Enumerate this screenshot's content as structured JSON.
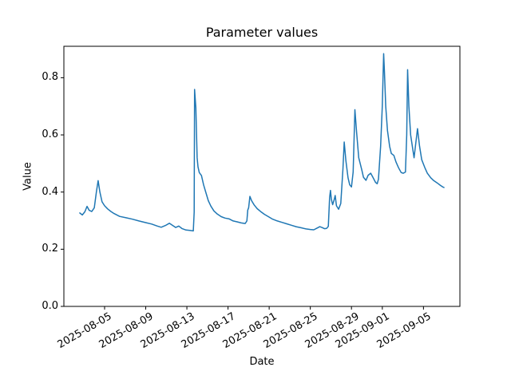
{
  "chart_data": {
    "type": "line",
    "title": "Parameter values",
    "xlabel": "Date",
    "ylabel": "Value",
    "grid": false,
    "legend": false,
    "line_color": "#1f77b4",
    "background_color": "#ffffff",
    "y_ticks": [
      0.0,
      0.2,
      0.4,
      0.6,
      0.8
    ],
    "x_ticks": [
      "2025-08-05",
      "2025-08-09",
      "2025-08-13",
      "2025-08-17",
      "2025-08-21",
      "2025-08-25",
      "2025-08-29",
      "2025-09-01",
      "2025-09-05"
    ],
    "x_lim": [
      "2025-08-01T01:00",
      "2025-09-08T13:00"
    ],
    "y_lim": [
      0.0,
      0.91
    ],
    "series": [
      {
        "name": "parameter-values",
        "color": "#1f77b4",
        "points": [
          [
            "2025-08-02T14:00",
            0.327
          ],
          [
            "2025-08-02T20:00",
            0.32
          ],
          [
            "2025-08-03T02:00",
            0.331
          ],
          [
            "2025-08-03T07:00",
            0.35
          ],
          [
            "2025-08-03T12:00",
            0.336
          ],
          [
            "2025-08-03T18:00",
            0.332
          ],
          [
            "2025-08-04T00:00",
            0.345
          ],
          [
            "2025-08-04T05:00",
            0.402
          ],
          [
            "2025-08-04T09:00",
            0.44
          ],
          [
            "2025-08-04T13:00",
            0.4
          ],
          [
            "2025-08-04T18:00",
            0.366
          ],
          [
            "2025-08-05T00:00",
            0.352
          ],
          [
            "2025-08-05T07:00",
            0.341
          ],
          [
            "2025-08-05T15:00",
            0.332
          ],
          [
            "2025-08-05T22:00",
            0.325
          ],
          [
            "2025-08-06T11:00",
            0.315
          ],
          [
            "2025-08-07T02:00",
            0.31
          ],
          [
            "2025-08-07T17:00",
            0.305
          ],
          [
            "2025-08-08T08:00",
            0.299
          ],
          [
            "2025-08-09T00:00",
            0.293
          ],
          [
            "2025-08-09T14:00",
            0.288
          ],
          [
            "2025-08-10T03:00",
            0.281
          ],
          [
            "2025-08-10T12:00",
            0.277
          ],
          [
            "2025-08-10T22:00",
            0.283
          ],
          [
            "2025-08-11T07:00",
            0.291
          ],
          [
            "2025-08-11T14:00",
            0.284
          ],
          [
            "2025-08-11T22:00",
            0.276
          ],
          [
            "2025-08-12T05:00",
            0.281
          ],
          [
            "2025-08-12T13:00",
            0.272
          ],
          [
            "2025-08-12T22:00",
            0.267
          ],
          [
            "2025-08-13T07:00",
            0.266
          ],
          [
            "2025-08-13T15:00",
            0.264
          ],
          [
            "2025-08-13T17:00",
            0.33
          ],
          [
            "2025-08-13T18:00",
            0.759
          ],
          [
            "2025-08-13T20:00",
            0.715
          ],
          [
            "2025-08-13T21:00",
            0.695
          ],
          [
            "2025-08-14T00:00",
            0.52
          ],
          [
            "2025-08-14T02:00",
            0.488
          ],
          [
            "2025-08-14T05:00",
            0.468
          ],
          [
            "2025-08-14T10:00",
            0.458
          ],
          [
            "2025-08-14T15:00",
            0.425
          ],
          [
            "2025-08-14T21:00",
            0.395
          ],
          [
            "2025-08-15T02:00",
            0.37
          ],
          [
            "2025-08-15T08:00",
            0.351
          ],
          [
            "2025-08-15T15:00",
            0.334
          ],
          [
            "2025-08-15T23:00",
            0.323
          ],
          [
            "2025-08-16T08:00",
            0.314
          ],
          [
            "2025-08-16T17:00",
            0.309
          ],
          [
            "2025-08-17T03:00",
            0.306
          ],
          [
            "2025-08-17T12:00",
            0.299
          ],
          [
            "2025-08-17T21:00",
            0.296
          ],
          [
            "2025-08-18T07:00",
            0.292
          ],
          [
            "2025-08-18T16:00",
            0.29
          ],
          [
            "2025-08-18T20:00",
            0.299
          ],
          [
            "2025-08-18T22:00",
            0.337
          ],
          [
            "2025-08-19T00:00",
            0.345
          ],
          [
            "2025-08-19T03:00",
            0.385
          ],
          [
            "2025-08-19T07:00",
            0.37
          ],
          [
            "2025-08-19T13:00",
            0.355
          ],
          [
            "2025-08-19T20:00",
            0.342
          ],
          [
            "2025-08-20T04:00",
            0.332
          ],
          [
            "2025-08-20T13:00",
            0.322
          ],
          [
            "2025-08-20T22:00",
            0.314
          ],
          [
            "2025-08-21T07:00",
            0.306
          ],
          [
            "2025-08-21T19:00",
            0.299
          ],
          [
            "2025-08-22T06:00",
            0.294
          ],
          [
            "2025-08-22T17:00",
            0.289
          ],
          [
            "2025-08-23T04:00",
            0.284
          ],
          [
            "2025-08-23T15:00",
            0.279
          ],
          [
            "2025-08-24T03:00",
            0.275
          ],
          [
            "2025-08-24T14:00",
            0.271
          ],
          [
            "2025-08-25T00:00",
            0.269
          ],
          [
            "2025-08-25T08:00",
            0.268
          ],
          [
            "2025-08-25T16:00",
            0.274
          ],
          [
            "2025-08-25T22:00",
            0.279
          ],
          [
            "2025-08-26T03:00",
            0.276
          ],
          [
            "2025-08-26T09:00",
            0.272
          ],
          [
            "2025-08-26T14:00",
            0.273
          ],
          [
            "2025-08-26T18:00",
            0.28
          ],
          [
            "2025-08-26T21:00",
            0.38
          ],
          [
            "2025-08-26T23:00",
            0.406
          ],
          [
            "2025-08-27T01:00",
            0.375
          ],
          [
            "2025-08-27T04:00",
            0.356
          ],
          [
            "2025-08-27T07:00",
            0.37
          ],
          [
            "2025-08-27T10:00",
            0.388
          ],
          [
            "2025-08-27T13:00",
            0.352
          ],
          [
            "2025-08-27T18:00",
            0.34
          ],
          [
            "2025-08-27T23:00",
            0.36
          ],
          [
            "2025-08-28T04:00",
            0.48
          ],
          [
            "2025-08-28T07:00",
            0.575
          ],
          [
            "2025-08-28T11:00",
            0.51
          ],
          [
            "2025-08-28T16:00",
            0.45
          ],
          [
            "2025-08-28T20:00",
            0.425
          ],
          [
            "2025-08-29T00:00",
            0.418
          ],
          [
            "2025-08-29T04:00",
            0.47
          ],
          [
            "2025-08-29T08:00",
            0.688
          ],
          [
            "2025-08-29T12:00",
            0.61
          ],
          [
            "2025-08-29T17:00",
            0.52
          ],
          [
            "2025-08-30T00:00",
            0.478
          ],
          [
            "2025-08-30T04:00",
            0.452
          ],
          [
            "2025-08-30T10:00",
            0.441
          ],
          [
            "2025-08-30T15:00",
            0.459
          ],
          [
            "2025-08-30T21:00",
            0.466
          ],
          [
            "2025-08-31T02:00",
            0.452
          ],
          [
            "2025-08-31T08:00",
            0.434
          ],
          [
            "2025-08-31T12:00",
            0.429
          ],
          [
            "2025-08-31T15:00",
            0.445
          ],
          [
            "2025-08-31T20:00",
            0.56
          ],
          [
            "2025-09-01T00:00",
            0.7
          ],
          [
            "2025-09-01T03:00",
            0.884
          ],
          [
            "2025-09-01T05:00",
            0.82
          ],
          [
            "2025-09-01T08:00",
            0.7
          ],
          [
            "2025-09-01T12:00",
            0.615
          ],
          [
            "2025-09-01T17:00",
            0.56
          ],
          [
            "2025-09-01T21:00",
            0.535
          ],
          [
            "2025-09-02T03:00",
            0.528
          ],
          [
            "2025-09-02T08:00",
            0.505
          ],
          [
            "2025-09-02T14:00",
            0.485
          ],
          [
            "2025-09-02T20:00",
            0.468
          ],
          [
            "2025-09-03T01:00",
            0.466
          ],
          [
            "2025-09-03T06:00",
            0.47
          ],
          [
            "2025-09-03T09:00",
            0.6
          ],
          [
            "2025-09-03T11:00",
            0.828
          ],
          [
            "2025-09-03T14:00",
            0.7
          ],
          [
            "2025-09-03T18:00",
            0.6
          ],
          [
            "2025-09-04T00:00",
            0.54
          ],
          [
            "2025-09-04T02:00",
            0.52
          ],
          [
            "2025-09-04T06:00",
            0.57
          ],
          [
            "2025-09-04T10:00",
            0.622
          ],
          [
            "2025-09-04T15:00",
            0.56
          ],
          [
            "2025-09-04T20:00",
            0.513
          ],
          [
            "2025-09-05T03:00",
            0.486
          ],
          [
            "2025-09-05T09:00",
            0.466
          ],
          [
            "2025-09-05T17:00",
            0.45
          ],
          [
            "2025-09-06T00:00",
            0.44
          ],
          [
            "2025-09-06T08:00",
            0.432
          ],
          [
            "2025-09-06T15:00",
            0.424
          ],
          [
            "2025-09-06T21:00",
            0.418
          ],
          [
            "2025-09-07T00:00",
            0.416
          ]
        ]
      }
    ]
  }
}
